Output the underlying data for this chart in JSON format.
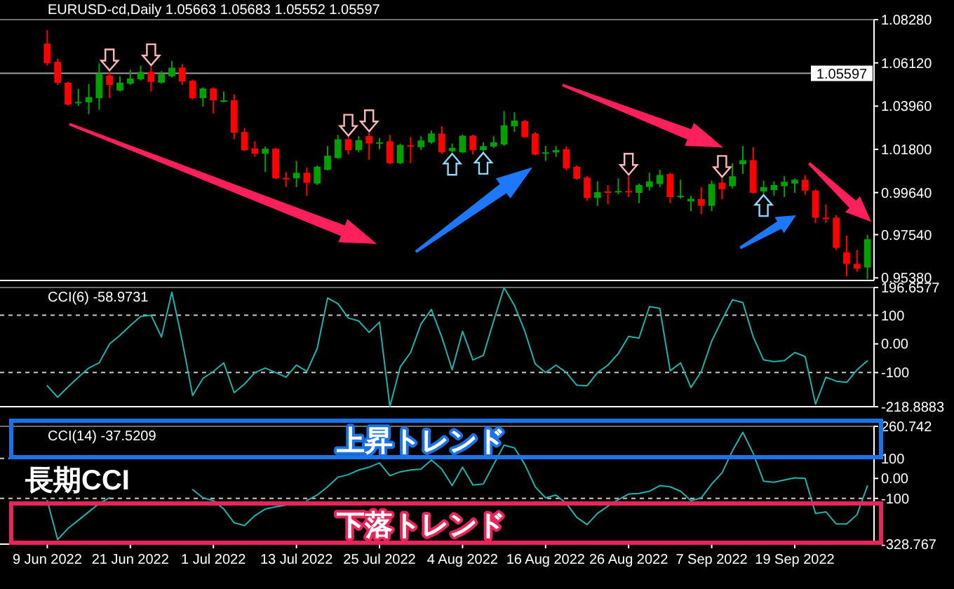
{
  "chart_data": [
    {
      "type": "candlestick",
      "title": "EURUSD-cd,Daily 1.05663 1.05683 1.05552 1.05597",
      "tick_labels": "y",
      "ohlc": [
        [
          1.0708,
          1.0775,
          1.0599,
          1.061
        ],
        [
          1.0617,
          1.0632,
          1.0502,
          1.0513
        ],
        [
          1.0513,
          1.0517,
          1.0399,
          1.0404
        ],
        [
          1.0412,
          1.0482,
          1.0397,
          1.0417
        ],
        [
          1.0415,
          1.0506,
          1.0356,
          1.0441
        ],
        [
          1.0436,
          1.061,
          1.0378,
          1.0556
        ],
        [
          1.0549,
          1.0567,
          1.0436,
          1.0502
        ],
        [
          1.0474,
          1.0545,
          1.0469,
          1.0513
        ],
        [
          1.0508,
          1.0578,
          1.0502,
          1.0534
        ],
        [
          1.053,
          1.0599,
          1.0523,
          1.0567
        ],
        [
          1.0567,
          1.0593,
          1.0469,
          1.0517
        ],
        [
          1.0513,
          1.0571,
          1.0508,
          1.0556
        ],
        [
          1.0545,
          1.0621,
          1.0539,
          1.0588
        ],
        [
          1.0588,
          1.0606,
          1.0502,
          1.0519
        ],
        [
          1.0523,
          1.0528,
          1.043,
          1.0436
        ],
        [
          1.0436,
          1.049,
          1.0393,
          1.0484
        ],
        [
          1.0484,
          1.049,
          1.0359,
          1.0425
        ],
        [
          1.0423,
          1.0469,
          1.0415,
          1.0425
        ],
        [
          1.0425,
          1.0454,
          1.023,
          1.0263
        ],
        [
          1.0267,
          1.0285,
          1.0171,
          1.0176
        ],
        [
          1.0185,
          1.022,
          1.0143,
          1.0158
        ],
        [
          1.0158,
          1.0194,
          1.0067,
          1.0183
        ],
        [
          1.0183,
          1.0187,
          1.0031,
          1.0035
        ],
        [
          1.0037,
          1.0067,
          0.9992,
          1.0033
        ],
        [
          1.0035,
          1.0122,
          0.9992,
          1.0063
        ],
        [
          1.0063,
          1.0089,
          0.9948,
          1.0013
        ],
        [
          1.0009,
          1.01,
          1.0002,
          1.0093
        ],
        [
          1.0078,
          1.0197,
          1.0075,
          1.0148
        ],
        [
          1.0137,
          1.0252,
          1.0132,
          1.023
        ],
        [
          1.023,
          1.0241,
          1.0154,
          1.0176
        ],
        [
          1.0176,
          1.0246,
          1.0165,
          1.0226
        ],
        [
          1.0246,
          1.0263,
          1.0128,
          1.0209
        ],
        [
          1.0213,
          1.0237,
          1.0181,
          1.0215
        ],
        [
          1.022,
          1.0252,
          1.0106,
          1.0111
        ],
        [
          1.0111,
          1.0209,
          1.0106,
          1.0202
        ],
        [
          1.02,
          1.0241,
          1.0111,
          1.0197
        ],
        [
          1.0191,
          1.0246,
          1.0176,
          1.0224
        ],
        [
          1.0215,
          1.0274,
          1.0209,
          1.0259
        ],
        [
          1.0259,
          1.0295,
          1.0158,
          1.0165
        ],
        [
          1.0171,
          1.0209,
          1.0165,
          1.0187
        ],
        [
          1.0165,
          1.0254,
          1.0161,
          1.0248
        ],
        [
          1.0248,
          1.0254,
          1.0154,
          1.0176
        ],
        [
          1.0176,
          1.0215,
          1.017,
          1.0196
        ],
        [
          1.0194,
          1.0246,
          1.0187,
          1.0215
        ],
        [
          1.0204,
          1.0371,
          1.0197,
          1.03
        ],
        [
          1.0295,
          1.0365,
          1.0267,
          1.0324
        ],
        [
          1.0321,
          1.0328,
          1.0237,
          1.0241
        ],
        [
          1.0259,
          1.0267,
          1.015,
          1.0154
        ],
        [
          1.0163,
          1.0197,
          1.0122,
          1.0165
        ],
        [
          1.0165,
          1.0197,
          1.0143,
          1.0176
        ],
        [
          1.0181,
          1.0194,
          1.0075,
          1.0085
        ],
        [
          1.0093,
          1.01,
          1.0028,
          1.0033
        ],
        [
          1.0039,
          1.0046,
          0.9924,
          0.9937
        ],
        [
          0.9937,
          1.002,
          0.9898,
          0.9966
        ],
        [
          0.997,
          1.0002,
          0.9905,
          0.9966
        ],
        [
          0.9968,
          1.0035,
          0.9955,
          0.9972
        ],
        [
          0.9972,
          1.0046,
          0.9942,
          0.9968
        ],
        [
          0.9963,
          1.0009,
          0.9911,
          1.0002
        ],
        [
          0.9992,
          1.0063,
          0.9974,
          1.002
        ],
        [
          1.0007,
          1.0078,
          0.9992,
          1.0052
        ],
        [
          1.0057,
          1.0063,
          0.9911,
          0.9942
        ],
        [
          0.9946,
          1.0028,
          0.9933,
          0.9948
        ],
        [
          0.992,
          0.9948,
          0.9872,
          0.9933
        ],
        [
          0.9931,
          0.9992,
          0.9857,
          0.9898
        ],
        [
          0.9898,
          1.0024,
          0.9872,
          1.0007
        ],
        [
          1.0013,
          1.0035,
          0.9931,
          0.9981
        ],
        [
          0.9996,
          1.0111,
          0.9985,
          1.0046
        ],
        [
          1.0106,
          1.0197,
          1.0057,
          1.0126
        ],
        [
          1.0126,
          1.0191,
          0.9959,
          0.9963
        ],
        [
          0.997,
          1.0024,
          0.9959,
          0.9992
        ],
        [
          0.9976,
          1.002,
          0.9948,
          1.0002
        ],
        [
          0.9996,
          1.0046,
          0.9942,
          1.0018
        ],
        [
          1.0009,
          1.0035,
          0.9963,
          1.0028
        ],
        [
          1.0028,
          1.0052,
          0.9953,
          0.9974
        ],
        [
          0.9974,
          0.9981,
          0.9811,
          0.9839
        ],
        [
          0.9839,
          0.9905,
          0.9813,
          0.9838
        ],
        [
          0.9839,
          0.9851,
          0.9677,
          0.9688
        ],
        [
          0.9666,
          0.9749,
          0.9547,
          0.9608
        ],
        [
          0.9608,
          0.9677,
          0.9569,
          0.9584
        ],
        [
          0.959,
          0.9753,
          0.9532,
          0.9731
        ]
      ],
      "ylim": [
        0.9525,
        1.0828
      ],
      "yticks": [
        {
          "value": 1.0828,
          "label": "1.08280"
        },
        {
          "value": 1.0612,
          "label": "1.06120"
        },
        {
          "value": 1.0396,
          "label": "1.03960"
        },
        {
          "value": 1.018,
          "label": "1.01800"
        },
        {
          "value": 0.9964,
          "label": "0.99640"
        },
        {
          "value": 0.9754,
          "label": "0.97540"
        },
        {
          "value": 0.9538,
          "label": "0.95380"
        }
      ],
      "ref_lines": [
        {
          "axis": "y",
          "value": 1.05597,
          "label": "1.05597",
          "color": "#a0a0a0",
          "line_style": "solid"
        }
      ]
    },
    {
      "type": "line",
      "title": "CCI(6) -58.9731",
      "tick_labels": "y",
      "color": "#20b2aa",
      "values": [
        -146,
        -186,
        -150,
        -116,
        -84,
        -66,
        0,
        30,
        64,
        96,
        100,
        24,
        180,
        10,
        -180,
        -120,
        -96,
        -66,
        -170,
        -140,
        -100,
        -84,
        -100,
        -116,
        -74,
        -96,
        -16,
        160,
        140,
        90,
        80,
        40,
        76,
        -218,
        -80,
        -30,
        70,
        120,
        24,
        -90,
        44,
        -56,
        -40,
        80,
        196,
        134,
        44,
        -70,
        -100,
        -74,
        -100,
        -144,
        -146,
        -100,
        -74,
        -34,
        26,
        20,
        130,
        124,
        -94,
        -66,
        -152,
        -96,
        10,
        84,
        154,
        144,
        24,
        -56,
        -62,
        -58,
        -30,
        -44,
        -210,
        -116,
        -130,
        -134,
        -90,
        -58.9731
      ],
      "ylim": [
        -218.8883,
        196.6577
      ],
      "yticks": [
        196.6577,
        100,
        {
          "value": 0,
          "label": "0.00"
        },
        -100,
        -218.8883
      ],
      "ref_lines": [
        {
          "axis": "y",
          "value": 100,
          "color": "#c8c8c8",
          "line_style": "dashed"
        },
        {
          "axis": "y",
          "value": -100,
          "color": "#c8c8c8",
          "line_style": "dashed"
        }
      ]
    },
    {
      "type": "line",
      "title": "CCI(14) -37.5209",
      "color": "#20b2aa",
      "categories": [
        "9 Jun 2022",
        null,
        null,
        null,
        null,
        null,
        null,
        null,
        "21 Jun 2022",
        null,
        null,
        null,
        null,
        null,
        null,
        null,
        "1 Jul 2022",
        null,
        null,
        null,
        null,
        null,
        null,
        null,
        "13 Jul 2022",
        null,
        null,
        null,
        null,
        null,
        null,
        null,
        "25 Jul 2022",
        null,
        null,
        null,
        null,
        null,
        null,
        null,
        "4 Aug 2022",
        null,
        null,
        null,
        null,
        null,
        null,
        null,
        "16 Aug 2022",
        null,
        null,
        null,
        null,
        null,
        null,
        null,
        "26 Aug 2022",
        null,
        null,
        null,
        null,
        null,
        null,
        null,
        "7 Sep 2022",
        null,
        null,
        null,
        null,
        null,
        null,
        null,
        "19 Sep 2022",
        null,
        null,
        null,
        null,
        null,
        null,
        null
      ],
      "values": [
        -111,
        -306,
        -250,
        -209,
        -167,
        -125,
        -97,
        null,
        null,
        null,
        null,
        null,
        null,
        null,
        -56,
        -97,
        -111,
        -153,
        -222,
        -236,
        -186,
        -153,
        -142,
        -133,
        null,
        -111,
        -83,
        -42,
        6,
        19,
        42,
        56,
        78,
        14,
        33,
        42,
        47,
        92,
        47,
        -36,
        56,
        -33,
        -28,
        70,
        167,
        153,
        70,
        -42,
        -97,
        -83,
        -125,
        -195,
        -231,
        -175,
        -139,
        -106,
        -78,
        -75,
        -64,
        -36,
        -42,
        -64,
        -111,
        -97,
        -28,
        28,
        139,
        231,
        125,
        -14,
        -19,
        -8,
        3,
        0,
        -175,
        -167,
        -228,
        -228,
        -181,
        -37.5209
      ],
      "ylim": [
        -328.767,
        260.742
      ],
      "yticks": [
        260.742,
        100,
        {
          "value": 0,
          "label": "0.00"
        },
        -100,
        -328.767
      ],
      "ref_lines": [
        {
          "axis": "y",
          "value": 100,
          "color": "#c8c8c8",
          "line_style": "dashed"
        },
        {
          "axis": "y",
          "value": -100,
          "color": "#c8c8c8",
          "line_style": "dashed"
        }
      ],
      "annotations": [
        "上昇トレンド",
        "長期CCI",
        "下落トレンド"
      ]
    }
  ]
}
